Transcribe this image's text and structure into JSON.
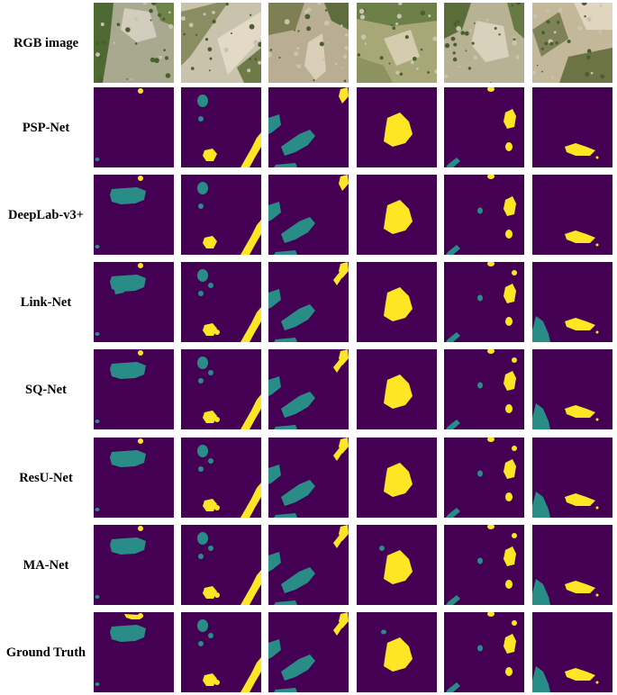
{
  "figure": {
    "rows": [
      {
        "label": "RGB image"
      },
      {
        "label": "PSP-Net"
      },
      {
        "label": "DeepLab-v3+"
      },
      {
        "label": "Link-Net"
      },
      {
        "label": "SQ-Net"
      },
      {
        "label": "ResU-Net"
      },
      {
        "label": "MA-Net"
      },
      {
        "label": "Ground Truth"
      }
    ],
    "columns": 6,
    "colors": {
      "background": "#440154",
      "class_a": "#2a8c86",
      "class_b": "#fde725"
    }
  }
}
